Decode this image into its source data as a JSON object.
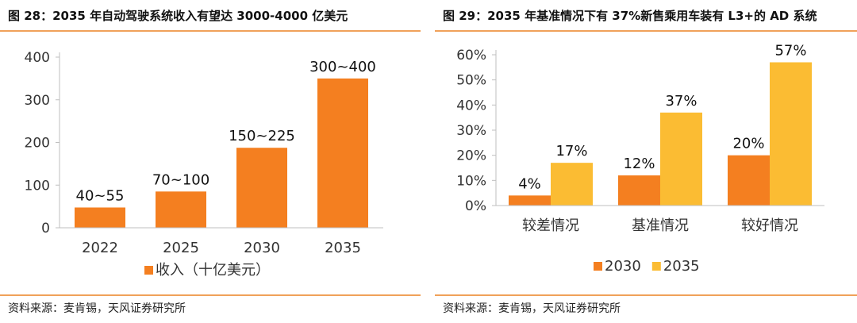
{
  "left": {
    "title": "图 28：2035 年自动驾驶系统收入有望达 3000-4000 亿美元",
    "source": "资料来源：麦肯锡，天风证券研究所"
  },
  "right": {
    "title": "图 29：2035 年基准情况下有 37%新售乘用车装有 L3+的 AD 系统",
    "source": "资料来源：麦肯锡，天风证券研究所"
  },
  "colors": {
    "accent": "#f0a15a",
    "orange": "#f47f20",
    "yellow": "#fbbc33"
  },
  "chart_data": [
    {
      "type": "bar",
      "title": "图 28：2035 年自动驾驶系统收入有望达 3000-4000 亿美元",
      "categories": [
        "2022",
        "2025",
        "2030",
        "2035"
      ],
      "series": [
        {
          "name": "收入（十亿美元）",
          "values": [
            47.5,
            85,
            187.5,
            350
          ],
          "labels": [
            "40~55",
            "70~100",
            "150~225",
            "300~400"
          ],
          "color": "#f47f20"
        }
      ],
      "yticks": [
        0,
        100,
        200,
        300,
        400
      ],
      "ytick_labels": [
        "0",
        "100",
        "200",
        "300",
        "400"
      ],
      "ylim": [
        0,
        400
      ],
      "xlabel": "",
      "ylabel": "",
      "legend": "bottom"
    },
    {
      "type": "bar",
      "title": "图 29：2035 年基准情况下有 37%新售乘用车装有 L3+的 AD 系统",
      "categories": [
        "较差情况",
        "基准情况",
        "较好情况"
      ],
      "series": [
        {
          "name": "2030",
          "values": [
            4,
            12,
            20
          ],
          "labels": [
            "4%",
            "12%",
            "20%"
          ],
          "color": "#f47f20"
        },
        {
          "name": "2035",
          "values": [
            17,
            37,
            57
          ],
          "labels": [
            "17%",
            "37%",
            "57%"
          ],
          "color": "#fbbc33"
        }
      ],
      "yticks": [
        0,
        10,
        20,
        30,
        40,
        50,
        60
      ],
      "ytick_labels": [
        "0%",
        "10%",
        "20%",
        "30%",
        "40%",
        "50%",
        "60%"
      ],
      "ylim": [
        0,
        60
      ],
      "xlabel": "",
      "ylabel": "",
      "legend": "bottom"
    }
  ]
}
